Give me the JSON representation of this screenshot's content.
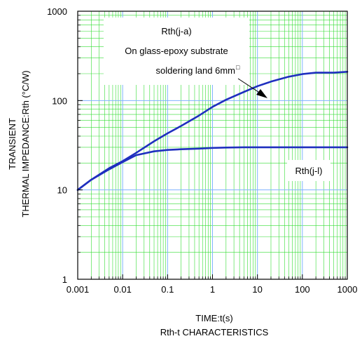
{
  "chart_data": {
    "type": "line",
    "title": "Rth-t CHARACTERISTICS",
    "xlabel": "TIME:t(s)",
    "ylabel_line1": "TRANSIENT",
    "ylabel_line2": "THERMAL IMPEDANCE:Rth (°C/W)",
    "x_scale": "log",
    "y_scale": "log",
    "xlim": [
      0.001,
      1000
    ],
    "ylim": [
      1,
      1000
    ],
    "x_ticks": [
      0.001,
      0.01,
      0.1,
      1,
      10,
      100,
      1000
    ],
    "x_tick_labels": [
      "0.001",
      "0.01",
      "0.1",
      "1",
      "10",
      "100",
      "1000"
    ],
    "y_ticks": [
      1,
      10,
      100,
      1000
    ],
    "y_tick_labels": [
      "1",
      "10",
      "100",
      "1000"
    ],
    "grid": true,
    "colors": {
      "line": "#1f2fbf",
      "minor_grid": "#33dd33",
      "major_grid": "#7fb3ff",
      "frame": "#000000"
    },
    "series": [
      {
        "name": "Rth(j-a)",
        "x": [
          0.001,
          0.002,
          0.005,
          0.01,
          0.02,
          0.05,
          0.1,
          0.2,
          0.5,
          1,
          2,
          5,
          10,
          20,
          50,
          100,
          200,
          500,
          1000
        ],
        "y": [
          10,
          13,
          17.5,
          21,
          26,
          35,
          43,
          52,
          68,
          85,
          102,
          125,
          145,
          163,
          185,
          198,
          205,
          205,
          210
        ]
      },
      {
        "name": "Rth(j-l)",
        "x": [
          0.001,
          0.002,
          0.005,
          0.01,
          0.02,
          0.05,
          0.1,
          0.2,
          0.5,
          1,
          2,
          5,
          10,
          100,
          1000
        ],
        "y": [
          10,
          13,
          17,
          20.5,
          24.5,
          27,
          28,
          28.5,
          29,
          29.5,
          29.8,
          30,
          30,
          30,
          30
        ]
      }
    ],
    "annotations": {
      "ja_line1": "Rth(j-a)",
      "ja_line2": "On glass-epoxy substrate",
      "ja_line3": "soldering land 6mm",
      "ja_square": "□",
      "jl_label": "Rth(j-l)"
    }
  }
}
